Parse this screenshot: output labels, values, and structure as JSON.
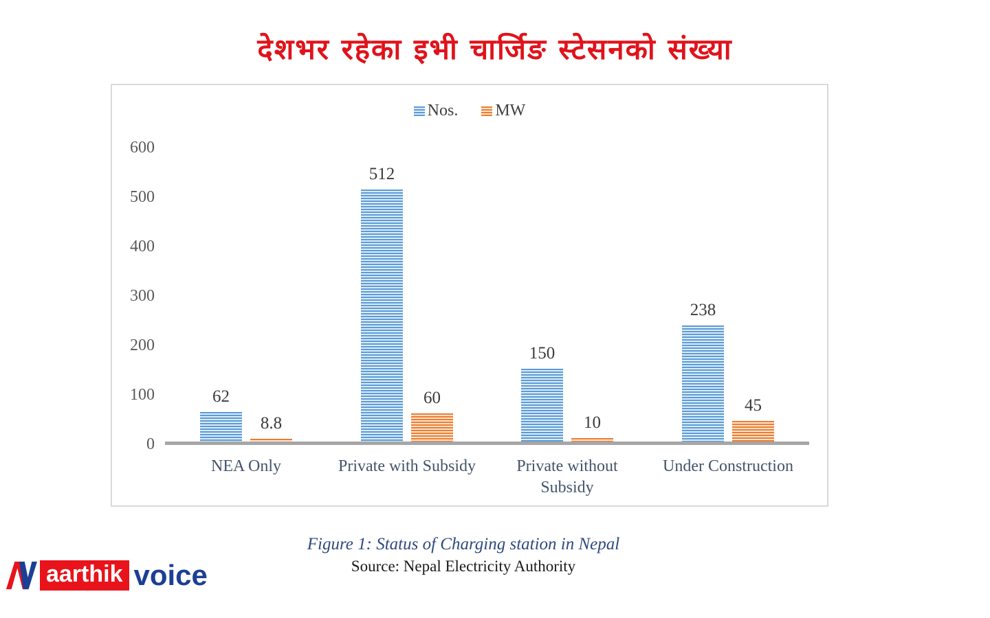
{
  "title": {
    "text": "देशभर रहेका इभी चार्जिङ स्टेसनको संख्या",
    "color": "#e0131b"
  },
  "chart_data": {
    "type": "bar",
    "categories": [
      "NEA  Only",
      "Private with Subsidy",
      "Private without Subsidy",
      "Under Construction"
    ],
    "series": [
      {
        "name": "Nos.",
        "values": [
          62,
          512,
          150,
          238
        ],
        "labels": [
          "62",
          "512",
          "150",
          "238"
        ],
        "color": "#5b9bd5",
        "stripe_light": "#dcebf8"
      },
      {
        "name": "MW",
        "values": [
          8.8,
          60,
          10,
          45
        ],
        "labels": [
          "8.8",
          "60",
          "10",
          "45"
        ],
        "color": "#ed7d31",
        "stripe_light": "#fbe2cd"
      }
    ],
    "ylim": [
      0,
      600
    ],
    "yticks": [
      0,
      100,
      200,
      300,
      400,
      500,
      600
    ],
    "grid": false,
    "legend_position": "top-center",
    "axis_line_color": "#a6a6a6",
    "pattern": "horizontal-stripes"
  },
  "caption": {
    "text": "Figure 1: Status of Charging station in Nepal",
    "color": "#2e4a7c"
  },
  "source": {
    "text": "Source: Nepal Electricity Authority"
  },
  "logo": {
    "monogram": "AV",
    "word1": "aarthik",
    "word2": "voice",
    "red": "#e8131b",
    "blue": "#1b3f94"
  }
}
